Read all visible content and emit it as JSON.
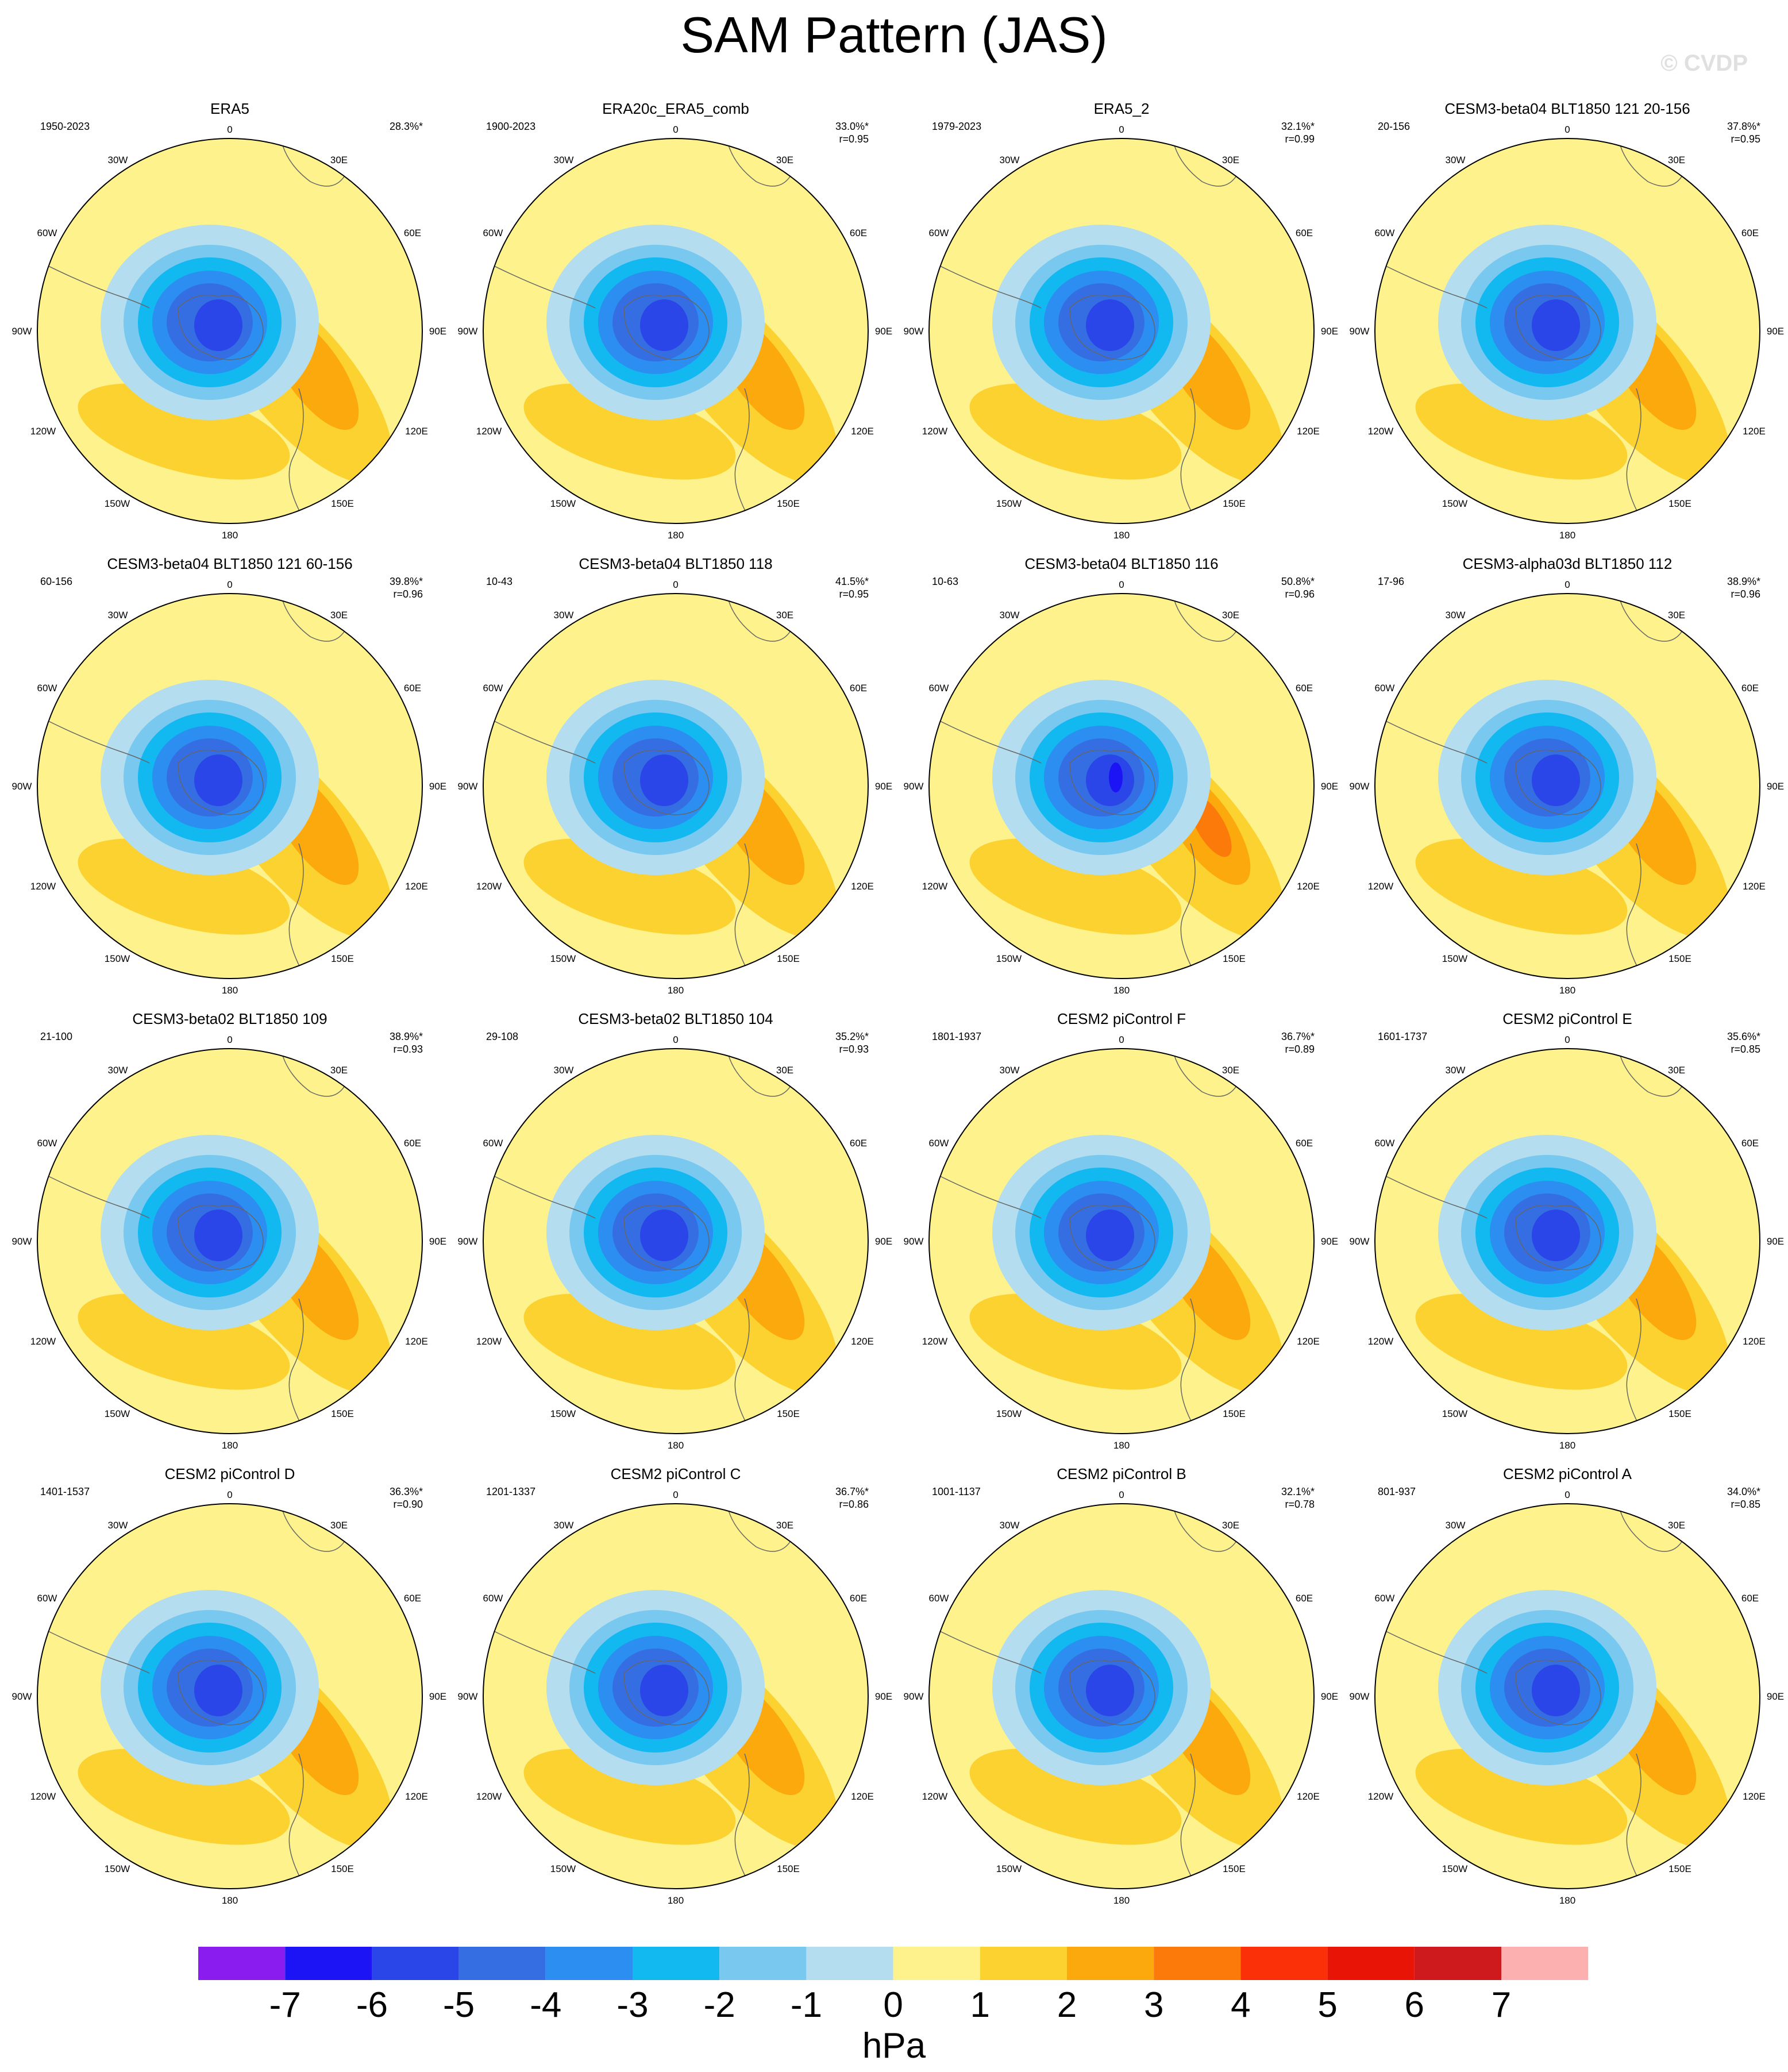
{
  "figure": {
    "title": "SAM Pattern (JAS)",
    "watermark": "© CVDP",
    "units": "hPa"
  },
  "colorbar": {
    "levels": [
      "-7",
      "-6",
      "-5",
      "-4",
      "-3",
      "-2",
      "-1",
      "0",
      "1",
      "2",
      "3",
      "4",
      "5",
      "6",
      "7"
    ],
    "colors": [
      "#8a1cf0",
      "#1c14f5",
      "#2a46e8",
      "#356ee3",
      "#2b8ef0",
      "#12b8f0",
      "#78c8f0",
      "#b4def0",
      "#fdf28c",
      "#fcd230",
      "#fba90c",
      "#fb7a0a",
      "#fb3008",
      "#e81406",
      "#ce1a1c",
      "#fdb0b0"
    ]
  },
  "map_labels": {
    "top": "0",
    "nw30": "30W",
    "ne30": "30E",
    "w60": "60W",
    "e60": "60E",
    "w90": "90W",
    "e90": "90E",
    "w120": "120W",
    "e120": "120E",
    "w150": "150W",
    "e150": "150E",
    "bottom": "180"
  },
  "panels": [
    {
      "title": "ERA5",
      "period": "1950-2023",
      "pct": "28.3%*",
      "r": ""
    },
    {
      "title": "ERA20c_ERA5_comb",
      "period": "1900-2023",
      "pct": "33.0%*",
      "r": "r=0.95"
    },
    {
      "title": "ERA5_2",
      "period": "1979-2023",
      "pct": "32.1%*",
      "r": "r=0.99"
    },
    {
      "title": "CESM3-beta04 BLT1850 121 20-156",
      "period": "20-156",
      "pct": "37.8%*",
      "r": "r=0.95"
    },
    {
      "title": "CESM3-beta04 BLT1850 121 60-156",
      "period": "60-156",
      "pct": "39.8%*",
      "r": "r=0.96"
    },
    {
      "title": "CESM3-beta04 BLT1850 118",
      "period": "10-43",
      "pct": "41.5%*",
      "r": "r=0.95"
    },
    {
      "title": "CESM3-beta04 BLT1850 116",
      "period": "10-63",
      "pct": "50.8%*",
      "r": "r=0.96"
    },
    {
      "title": "CESM3-alpha03d BLT1850 112",
      "period": "17-96",
      "pct": "38.9%*",
      "r": "r=0.96"
    },
    {
      "title": "CESM3-beta02 BLT1850 109",
      "period": "21-100",
      "pct": "38.9%*",
      "r": "r=0.93"
    },
    {
      "title": "CESM3-beta02 BLT1850 104",
      "period": "29-108",
      "pct": "35.2%*",
      "r": "r=0.93"
    },
    {
      "title": "CESM2 piControl F",
      "period": "1801-1937",
      "pct": "36.7%*",
      "r": "r=0.89"
    },
    {
      "title": "CESM2 piControl E",
      "period": "1601-1737",
      "pct": "35.6%*",
      "r": "r=0.85"
    },
    {
      "title": "CESM2 piControl D",
      "period": "1401-1537",
      "pct": "36.3%*",
      "r": "r=0.90"
    },
    {
      "title": "CESM2 piControl C",
      "period": "1201-1337",
      "pct": "36.7%*",
      "r": "r=0.86"
    },
    {
      "title": "CESM2 piControl B",
      "period": "1001-1137",
      "pct": "32.1%*",
      "r": "r=0.78"
    },
    {
      "title": "CESM2 piControl A",
      "period": "801-937",
      "pct": "34.0%*",
      "r": "r=0.85"
    }
  ]
}
